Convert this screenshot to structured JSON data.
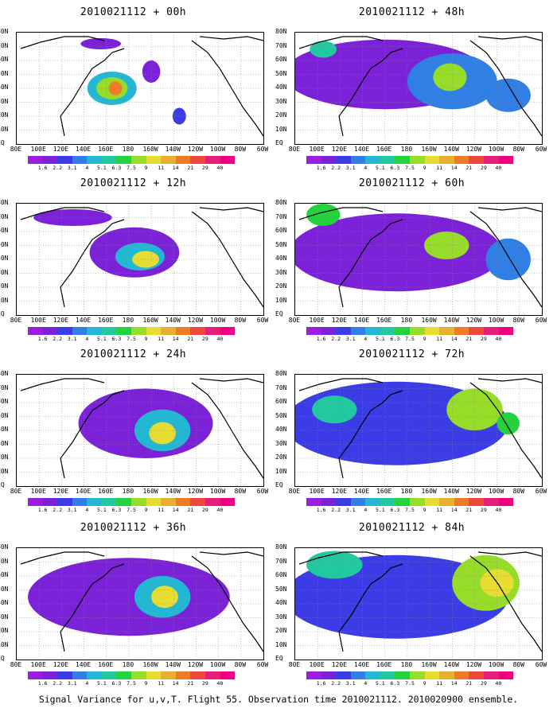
{
  "panels": [
    {
      "title": "2010021112 + 00h",
      "blobs": [
        {
          "lon": 165,
          "lat": 40,
          "rx": 22,
          "ry": 12,
          "level": 4
        },
        {
          "lon": 165,
          "lat": 40,
          "rx": 14,
          "ry": 8,
          "level": 7
        },
        {
          "lon": 168,
          "lat": 40,
          "rx": 6,
          "ry": 5,
          "level": 10
        },
        {
          "lon": 200,
          "lat": 52,
          "rx": 8,
          "ry": 8,
          "level": 1
        },
        {
          "lon": 225,
          "lat": 20,
          "rx": 6,
          "ry": 6,
          "level": 2
        },
        {
          "lon": 155,
          "lat": 72,
          "rx": 18,
          "ry": 4,
          "level": 1
        }
      ]
    },
    {
      "title": "2010021112 + 48h",
      "blobs": [
        {
          "lon": 160,
          "lat": 50,
          "rx": 90,
          "ry": 25,
          "level": 1
        },
        {
          "lon": 220,
          "lat": 45,
          "rx": 40,
          "ry": 20,
          "level": 3
        },
        {
          "lon": 218,
          "lat": 48,
          "rx": 15,
          "ry": 10,
          "level": 7
        },
        {
          "lon": 105,
          "lat": 68,
          "rx": 12,
          "ry": 6,
          "level": 5
        },
        {
          "lon": 270,
          "lat": 35,
          "rx": 20,
          "ry": 12,
          "level": 3
        }
      ]
    },
    {
      "title": "2010021112 + 12h",
      "blobs": [
        {
          "lon": 185,
          "lat": 45,
          "rx": 40,
          "ry": 18,
          "level": 1
        },
        {
          "lon": 190,
          "lat": 42,
          "rx": 22,
          "ry": 10,
          "level": 4
        },
        {
          "lon": 195,
          "lat": 40,
          "rx": 12,
          "ry": 6,
          "level": 8
        },
        {
          "lon": 130,
          "lat": 70,
          "rx": 35,
          "ry": 6,
          "level": 1
        }
      ]
    },
    {
      "title": "2010021112 + 60h",
      "blobs": [
        {
          "lon": 170,
          "lat": 45,
          "rx": 95,
          "ry": 28,
          "level": 1
        },
        {
          "lon": 105,
          "lat": 72,
          "rx": 15,
          "ry": 8,
          "level": 6
        },
        {
          "lon": 215,
          "lat": 50,
          "rx": 20,
          "ry": 10,
          "level": 7
        },
        {
          "lon": 270,
          "lat": 40,
          "rx": 20,
          "ry": 15,
          "level": 3
        }
      ]
    },
    {
      "title": "2010021112 + 24h",
      "blobs": [
        {
          "lon": 195,
          "lat": 45,
          "rx": 60,
          "ry": 25,
          "level": 1
        },
        {
          "lon": 210,
          "lat": 40,
          "rx": 25,
          "ry": 15,
          "level": 4
        },
        {
          "lon": 210,
          "lat": 38,
          "rx": 12,
          "ry": 8,
          "level": 8
        }
      ]
    },
    {
      "title": "2010021112 + 72h",
      "blobs": [
        {
          "lon": 170,
          "lat": 45,
          "rx": 100,
          "ry": 30,
          "level": 2
        },
        {
          "lon": 115,
          "lat": 55,
          "rx": 20,
          "ry": 10,
          "level": 5
        },
        {
          "lon": 240,
          "lat": 55,
          "rx": 25,
          "ry": 15,
          "level": 7
        },
        {
          "lon": 270,
          "lat": 45,
          "rx": 10,
          "ry": 8,
          "level": 6
        }
      ]
    },
    {
      "title": "2010021112 + 36h",
      "blobs": [
        {
          "lon": 180,
          "lat": 45,
          "rx": 90,
          "ry": 28,
          "level": 1
        },
        {
          "lon": 210,
          "lat": 45,
          "rx": 25,
          "ry": 15,
          "level": 4
        },
        {
          "lon": 212,
          "lat": 45,
          "rx": 12,
          "ry": 8,
          "level": 8
        }
      ]
    },
    {
      "title": "2010021112 + 84h",
      "blobs": [
        {
          "lon": 170,
          "lat": 45,
          "rx": 100,
          "ry": 30,
          "level": 2
        },
        {
          "lon": 115,
          "lat": 68,
          "rx": 25,
          "ry": 10,
          "level": 5
        },
        {
          "lon": 250,
          "lat": 55,
          "rx": 30,
          "ry": 20,
          "level": 7
        },
        {
          "lon": 260,
          "lat": 55,
          "rx": 15,
          "ry": 10,
          "level": 8
        }
      ]
    }
  ],
  "axes": {
    "xlabels": [
      "80E",
      "100E",
      "120E",
      "140E",
      "160E",
      "180",
      "160W",
      "140W",
      "120W",
      "100W",
      "80W",
      "60W"
    ],
    "ylabels": [
      "80N",
      "70N",
      "60N",
      "50N",
      "40N",
      "30N",
      "20N",
      "10N",
      "EQ"
    ]
  },
  "colorbar": {
    "labels": [
      "1.6",
      "2.2",
      "3.1",
      "4",
      "5.1",
      "6.3",
      "7.5",
      "9",
      "11",
      "14",
      "21",
      "29",
      "40"
    ],
    "colors": [
      "#9b1ee0",
      "#7b21d8",
      "#3c3ce6",
      "#2f7fe6",
      "#22b8d4",
      "#22c8a0",
      "#23d23c",
      "#96dc28",
      "#e6dc32",
      "#e6af2d",
      "#f07a28",
      "#f0463c",
      "#e61e78",
      "#f00082"
    ]
  },
  "footer": "Signal Variance for u,v,T. Flight 55. Observation time 2010021112. 2010020900 ensemble."
}
